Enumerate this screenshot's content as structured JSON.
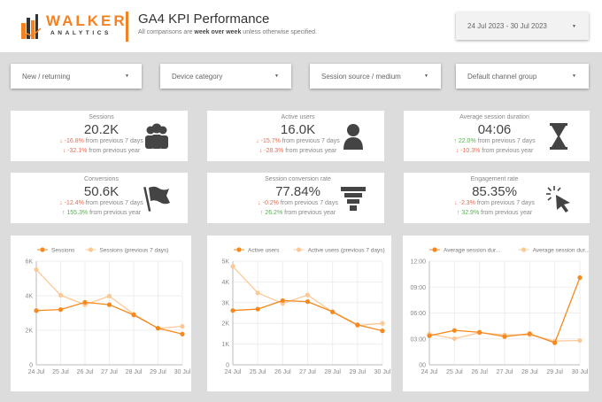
{
  "header": {
    "brand_top": "WALKER",
    "brand_bottom": "ANALYTICS",
    "title": "GA4 KPI Performance",
    "subtitle_pre": "All comparisons are ",
    "subtitle_bold": "week over week",
    "subtitle_post": " unless otherwise specified.",
    "date_range": "24 Jul 2023 - 30 Jul 2023"
  },
  "filters": [
    "New / returning",
    "Device category",
    "Session source / medium",
    "Default channel group"
  ],
  "kpis": [
    {
      "label": "Sessions",
      "value": "20.2K",
      "d1": "-16.8%",
      "d1_dir": "down",
      "d1_text": " from previous 7 days",
      "d2": "-32.1%",
      "d2_dir": "down",
      "d2_text": " from previous year",
      "icon": "group-icon"
    },
    {
      "label": "Active users",
      "value": "16.0K",
      "d1": "-15.7%",
      "d1_dir": "down",
      "d1_text": " from previous 7 days",
      "d2": "-28.3%",
      "d2_dir": "down",
      "d2_text": " from previous year",
      "icon": "user-icon"
    },
    {
      "label": "Average session duration",
      "value": "04:06",
      "d1": "22.0%",
      "d1_dir": "up",
      "d1_text": " from previous 7 days",
      "d2": "-10.3%",
      "d2_dir": "down",
      "d2_text": " from previous year",
      "icon": "hourglass-icon"
    },
    {
      "label": "Conversions",
      "value": "50.6K",
      "d1": "-12.4%",
      "d1_dir": "down",
      "d1_text": " from previous 7 days",
      "d2": "155.3%",
      "d2_dir": "up",
      "d2_text": " from previous year",
      "icon": "flag-icon"
    },
    {
      "label": "Session conversion rate",
      "value": "77.84%",
      "d1": "-0.2%",
      "d1_dir": "down",
      "d1_text": " from previous 7 days",
      "d2": "26.2%",
      "d2_dir": "up",
      "d2_text": " from previous year",
      "icon": "funnel-icon"
    },
    {
      "label": "Engagement rate",
      "value": "85.35%",
      "d1": "-2.3%",
      "d1_dir": "down",
      "d1_text": " from previous 7 days",
      "d2": "32.9%",
      "d2_dir": "up",
      "d2_text": " from previous year",
      "icon": "click-cursor-icon"
    }
  ],
  "colors": {
    "accent": "#f58220",
    "current": "#f5891f",
    "previous": "#fcc996",
    "negative": "#f0684d",
    "positive": "#5cad55"
  },
  "chart_data": [
    {
      "type": "line",
      "categories": [
        "24 Jul",
        "25 Jul",
        "26 Jul",
        "27 Jul",
        "28 Jul",
        "29 Jul",
        "30 Jul"
      ],
      "ylim": [
        0,
        6000
      ],
      "yticks": [
        0,
        2000,
        4000,
        6000
      ],
      "ytick_labels": [
        "0",
        "2K",
        "4K",
        "6K"
      ],
      "grid": true,
      "legend": "top",
      "series": [
        {
          "name": "Sessions",
          "values": [
            3140,
            3200,
            3620,
            3480,
            2890,
            2120,
            1780
          ]
        },
        {
          "name": "Sessions (previous 7 days)",
          "values": [
            5510,
            4030,
            3480,
            3980,
            2940,
            2110,
            2230
          ]
        }
      ]
    },
    {
      "type": "line",
      "categories": [
        "24 Jul",
        "25 Jul",
        "26 Jul",
        "27 Jul",
        "28 Jul",
        "29 Jul",
        "30 Jul"
      ],
      "ylim": [
        0,
        5000
      ],
      "yticks": [
        0,
        1000,
        2000,
        3000,
        4000,
        5000
      ],
      "ytick_labels": [
        "0",
        "1K",
        "2K",
        "3K",
        "4K",
        "5K"
      ],
      "grid": true,
      "legend": "top",
      "series": [
        {
          "name": "Active users",
          "values": [
            2620,
            2690,
            3100,
            3050,
            2560,
            1930,
            1640
          ]
        },
        {
          "name": "Active users (previous 7 days)",
          "values": [
            4750,
            3470,
            2960,
            3370,
            2540,
            1900,
            2000
          ]
        }
      ]
    },
    {
      "type": "line",
      "categories": [
        "24 Jul",
        "25 Jul",
        "26 Jul",
        "27 Jul",
        "28 Jul",
        "29 Jul",
        "30 Jul"
      ],
      "ylim": [
        0,
        720
      ],
      "yticks": [
        0,
        180,
        360,
        540,
        720
      ],
      "ytick_labels": [
        "00",
        "03:00",
        "06:00",
        "09:00",
        "12:00"
      ],
      "grid": true,
      "legend": "top",
      "unit": "seconds",
      "series": [
        {
          "name": "Average session dur...",
          "values": [
            202,
            239,
            226,
            196,
            216,
            153,
            606
          ]
        },
        {
          "name": "Average session dur...",
          "values": [
            214,
            182,
            223,
            208,
            208,
            165,
            169
          ]
        }
      ]
    }
  ]
}
